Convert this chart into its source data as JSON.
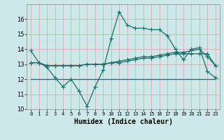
{
  "xlabel": "Humidex (Indice chaleur)",
  "background_color": "#cce8e8",
  "grid_color": "#ddaaaa",
  "line_color": "#1a6e6a",
  "x_values": [
    0,
    1,
    2,
    3,
    4,
    5,
    6,
    7,
    8,
    9,
    10,
    11,
    12,
    13,
    14,
    15,
    16,
    17,
    18,
    19,
    20,
    21,
    22,
    23
  ],
  "line1": [
    13.9,
    13.1,
    12.8,
    12.1,
    11.5,
    12.0,
    11.2,
    10.2,
    11.5,
    12.6,
    14.7,
    16.5,
    15.6,
    15.4,
    15.4,
    15.3,
    15.3,
    14.9,
    14.0,
    13.3,
    14.0,
    14.1,
    12.5,
    12.1
  ],
  "line2": [
    13.1,
    13.1,
    12.9,
    12.9,
    12.9,
    12.9,
    12.9,
    13.0,
    13.0,
    13.0,
    13.1,
    13.2,
    13.3,
    13.4,
    13.5,
    13.5,
    13.6,
    13.7,
    13.8,
    13.8,
    13.9,
    14.0,
    13.5,
    12.9
  ],
  "line3": [
    13.1,
    13.1,
    12.9,
    12.9,
    12.9,
    12.9,
    12.9,
    13.0,
    13.0,
    13.0,
    13.1,
    13.1,
    13.2,
    13.3,
    13.4,
    13.4,
    13.5,
    13.6,
    13.7,
    13.7,
    13.7,
    13.7,
    13.7,
    12.9
  ],
  "line4": [
    12.0,
    12.0,
    12.0,
    12.0,
    12.0,
    12.0,
    12.0,
    12.0,
    12.0,
    12.0,
    12.0,
    12.0,
    12.0,
    12.0,
    12.0,
    12.0,
    12.0,
    12.0,
    12.0,
    12.0,
    12.0,
    12.0,
    12.0,
    12.0
  ],
  "ylim": [
    10,
    17
  ],
  "yticks": [
    10,
    11,
    12,
    13,
    14,
    15,
    16
  ],
  "xtick_labels": [
    "0",
    "1",
    "2",
    "3",
    "4",
    "5",
    "6",
    "7",
    "8",
    "9",
    "10",
    "11",
    "12",
    "13",
    "14",
    "15",
    "16",
    "17",
    "18",
    "19",
    "20",
    "21",
    "22",
    "23"
  ]
}
